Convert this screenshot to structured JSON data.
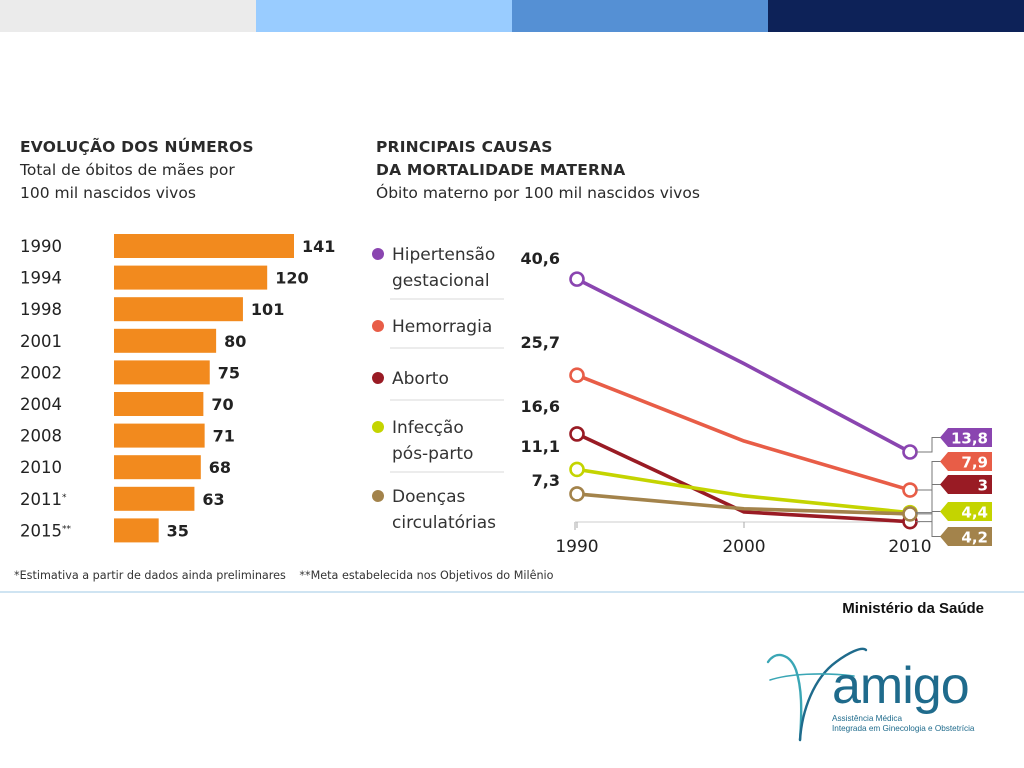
{
  "colors": {
    "bar": "#f28a1e",
    "top_bar": [
      "#ebebeb",
      "#99ccff",
      "#5590d4",
      "#0d2258"
    ]
  },
  "left_panel": {
    "title": "EVOLUÇÃO DOS NÚMEROS",
    "subtitle_line1": "Total de óbitos de mães por",
    "subtitle_line2": "100 mil nascidos vivos"
  },
  "right_panel": {
    "title_line1": "PRINCIPAIS CAUSAS",
    "title_line2": "DA MORTALIDADE MATERNA",
    "subtitle": "Óbito materno por 100 mil nascidos vivos"
  },
  "footnotes": {
    "note1": "*Estimativa a partir de dados ainda preliminares",
    "note2": "**Meta estabelecida nos Objetivos do Milênio"
  },
  "source": "Ministério da Saúde",
  "logo": {
    "word": "amigo",
    "tagline_line1": "Assistência Médica",
    "tagline_line2": "Integrada em Ginecologia e Obstetrícia"
  },
  "chart_data": [
    {
      "type": "bar",
      "orientation": "horizontal",
      "title": "EVOLUÇÃO DOS NÚMEROS",
      "subtitle": "Total de óbitos de mães por 100 mil nascidos vivos",
      "categories": [
        "1990",
        "1994",
        "1998",
        "2001",
        "2002",
        "2004",
        "2008",
        "2010",
        "2011*",
        "2015**"
      ],
      "category_labels": [
        {
          "text": "1990",
          "mark": ""
        },
        {
          "text": "1994",
          "mark": ""
        },
        {
          "text": "1998",
          "mark": ""
        },
        {
          "text": "2001",
          "mark": ""
        },
        {
          "text": "2002",
          "mark": ""
        },
        {
          "text": "2004",
          "mark": ""
        },
        {
          "text": "2008",
          "mark": ""
        },
        {
          "text": "2010",
          "mark": ""
        },
        {
          "text": "2011",
          "mark": "*"
        },
        {
          "text": "2015",
          "mark": "**"
        }
      ],
      "values": [
        141,
        120,
        101,
        80,
        75,
        70,
        71,
        68,
        63,
        35
      ],
      "data_labels": [
        "141",
        "120",
        "101",
        "80",
        "75",
        "70",
        "71",
        "68",
        "63",
        "35"
      ],
      "color": "#f28a1e"
    },
    {
      "type": "line",
      "title": "PRINCIPAIS CAUSAS DA MORTALIDADE MATERNA",
      "subtitle": "Óbito materno por 100 mil nascidos vivos",
      "x": [
        1990,
        2000,
        2010
      ],
      "x_tick_labels": [
        "1990",
        "2000",
        "2010"
      ],
      "series": [
        {
          "name": "Hipertensão gestacional",
          "legend_lines": [
            "Hipertensão",
            "gestacional"
          ],
          "color": "#8a45b0",
          "values": [
            40.6,
            27.5,
            13.8
          ],
          "start_label": "40,6",
          "end_label": "13,8"
        },
        {
          "name": "Hemorragia",
          "legend_lines": [
            "Hemorragia"
          ],
          "color": "#e85d47",
          "values": [
            25.7,
            15.5,
            7.9
          ],
          "start_label": "25,7",
          "end_label": "7,9"
        },
        {
          "name": "Aborto",
          "legend_lines": [
            "Aborto"
          ],
          "color": "#991b24",
          "values": [
            16.6,
            4.5,
            3
          ],
          "start_label": "16,6",
          "end_label": "3"
        },
        {
          "name": "Infecção pós-parto",
          "legend_lines": [
            "Infecção",
            "pós-parto"
          ],
          "color": "#c4d400",
          "values": [
            11.1,
            7.0,
            4.4
          ],
          "start_label": "11,1",
          "end_label": "4,4"
        },
        {
          "name": "Doenças circulatórias",
          "legend_lines": [
            "Doenças",
            "circulatórias"
          ],
          "color": "#a3834b",
          "values": [
            7.3,
            5.0,
            4.2
          ],
          "start_label": "7,3",
          "end_label": "4,2"
        }
      ],
      "ylim": [
        0,
        45
      ],
      "grid": false,
      "legend_position": "left"
    }
  ]
}
